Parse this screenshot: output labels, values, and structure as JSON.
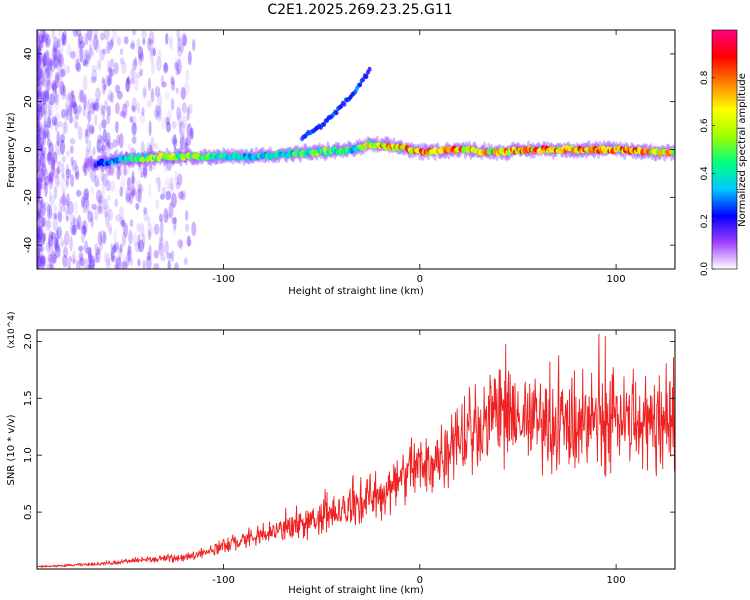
{
  "title": "C2E1.2025.269.23.25.G11",
  "chart_data": [
    {
      "type": "heatmap",
      "title": "C2E1.2025.269.23.25.G11",
      "xlabel": "Height of straight line (km)",
      "ylabel": "Frequency (Hz)",
      "xlim": [
        -195,
        130
      ],
      "ylim": [
        -50,
        50
      ],
      "xticks": [
        -100,
        0,
        100
      ],
      "yticks": [
        -40,
        -20,
        0,
        20,
        40
      ],
      "xtick_labels": [
        "-100",
        "0",
        "100"
      ],
      "ytick_labels": [
        "-40",
        "-20",
        "0",
        "20",
        "40"
      ],
      "colorbar": {
        "label": "Normalized spectral amplitude",
        "range": [
          0,
          1
        ],
        "ticks": [
          0,
          0.2,
          0.4,
          0.6,
          0.8
        ],
        "tick_labels": [
          "0.0",
          "0.2",
          "0.4",
          "0.6",
          "0.8"
        ],
        "colors": [
          "#ffffff",
          "#a040ff",
          "#0000ff",
          "#00c8ff",
          "#00ff80",
          "#a0ff00",
          "#ffff00",
          "#ff8000",
          "#ff0000",
          "#ff0080"
        ]
      },
      "ridge": {
        "description_points_x_km": [
          -165,
          -150,
          -130,
          -110,
          -90,
          -70,
          -50,
          -35,
          -25,
          -10,
          0,
          20,
          40,
          60,
          80,
          100,
          120,
          130
        ],
        "frequency_hz": [
          -6,
          -4,
          -3,
          -3,
          -3,
          -2,
          -1,
          0,
          2,
          1,
          -1,
          0,
          -1,
          0,
          0,
          0,
          -1,
          -1
        ],
        "peak_amplitude": [
          0.3,
          0.5,
          0.7,
          0.6,
          0.5,
          0.5,
          0.6,
          0.5,
          0.8,
          0.9,
          0.95,
          0.9,
          0.85,
          0.95,
          0.9,
          0.95,
          0.85,
          0.8
        ]
      },
      "branch": {
        "x_km": [
          -60,
          -50,
          -40,
          -32,
          -25
        ],
        "frequency_hz": [
          5,
          10,
          18,
          25,
          34
        ]
      }
    },
    {
      "type": "line",
      "xlabel": "Height of straight line (km)",
      "ylabel": "SNR (10 * v/v)",
      "y_multiplier_label": "(x10^4)",
      "xlim": [
        -195,
        130
      ],
      "ylim": [
        0,
        21000
      ],
      "xticks": [
        -100,
        0,
        100
      ],
      "yticks": [
        5000,
        10000,
        15000,
        20000
      ],
      "xtick_labels": [
        "-100",
        "0",
        "100"
      ],
      "ytick_labels": [
        "0.5",
        "1.0",
        "1.5",
        "2.0"
      ],
      "color": "#ee2222",
      "series": [
        {
          "name": "SNR",
          "x": [
            -195,
            -180,
            -160,
            -140,
            -120,
            -110,
            -100,
            -90,
            -80,
            -70,
            -60,
            -50,
            -40,
            -30,
            -20,
            -15,
            -10,
            -5,
            0,
            5,
            10,
            15,
            20,
            25,
            30,
            40,
            50,
            60,
            70,
            80,
            90,
            100,
            110,
            120,
            130
          ],
          "y": [
            200,
            300,
            500,
            800,
            1000,
            1500,
            2000,
            2500,
            3000,
            3500,
            4000,
            4500,
            5000,
            6000,
            6500,
            7000,
            8000,
            8500,
            9000,
            9500,
            10000,
            11000,
            12000,
            12500,
            13000,
            13000,
            13000,
            13000,
            12500,
            12500,
            13000,
            13000,
            13500,
            13000,
            13000
          ]
        }
      ]
    }
  ]
}
